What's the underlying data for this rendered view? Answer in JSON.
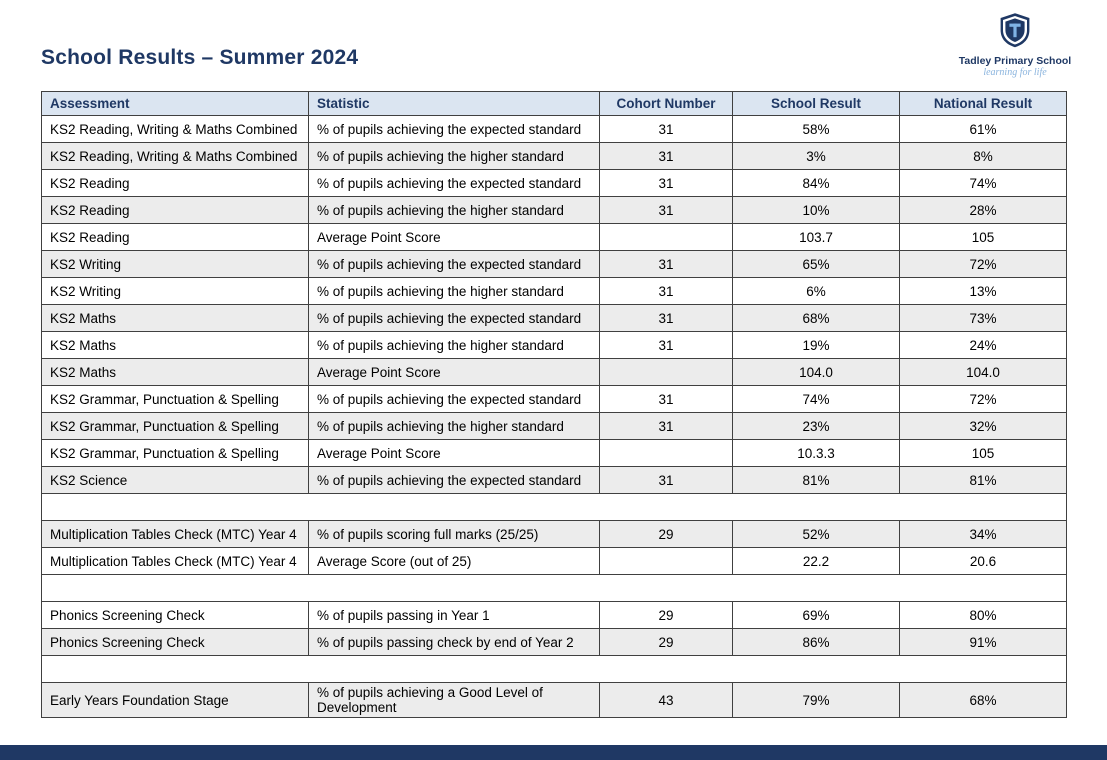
{
  "page": {
    "title": "School Results – Summer 2024"
  },
  "logo": {
    "school_name": "Tadley Primary School",
    "tagline": "learning for life",
    "crest": "shield-with-T"
  },
  "colors": {
    "title_text": "#1f3864",
    "header_bg": "#dbe5f1",
    "header_text": "#1f3864",
    "row_shaded_bg": "#ececec",
    "border": "#404040",
    "footer_bar": "#1f3864",
    "tagline_color": "#8ab4de",
    "crest_accent": "#7fb2e5"
  },
  "table": {
    "columns": [
      {
        "label": "Assessment",
        "align": "left"
      },
      {
        "label": "Statistic",
        "align": "left"
      },
      {
        "label": "Cohort Number",
        "align": "center"
      },
      {
        "label": "School Result",
        "align": "center"
      },
      {
        "label": "National Result",
        "align": "center"
      }
    ],
    "rows": [
      {
        "type": "data",
        "shaded": false,
        "cells": [
          "KS2 Reading, Writing & Maths Combined",
          "% of pupils achieving the expected standard",
          "31",
          "58%",
          "61%"
        ]
      },
      {
        "type": "data",
        "shaded": true,
        "cells": [
          "KS2 Reading, Writing & Maths Combined",
          "% of pupils achieving the higher standard",
          "31",
          "3%",
          "8%"
        ]
      },
      {
        "type": "data",
        "shaded": false,
        "cells": [
          "KS2 Reading",
          "% of pupils achieving the expected standard",
          "31",
          "84%",
          "74%"
        ]
      },
      {
        "type": "data",
        "shaded": true,
        "cells": [
          "KS2 Reading",
          "% of pupils achieving the higher standard",
          "31",
          "10%",
          "28%"
        ]
      },
      {
        "type": "data",
        "shaded": false,
        "cells": [
          "KS2 Reading",
          "Average Point Score",
          "",
          "103.7",
          "105"
        ]
      },
      {
        "type": "data",
        "shaded": true,
        "cells": [
          "KS2 Writing",
          "% of pupils achieving the expected standard",
          "31",
          "65%",
          "72%"
        ]
      },
      {
        "type": "data",
        "shaded": false,
        "cells": [
          "KS2 Writing",
          "% of pupils achieving the higher standard",
          "31",
          "6%",
          "13%"
        ]
      },
      {
        "type": "data",
        "shaded": true,
        "cells": [
          "KS2 Maths",
          "% of pupils achieving the expected standard",
          "31",
          "68%",
          "73%"
        ]
      },
      {
        "type": "data",
        "shaded": false,
        "cells": [
          "KS2 Maths",
          "% of pupils achieving the higher standard",
          "31",
          "19%",
          "24%"
        ]
      },
      {
        "type": "data",
        "shaded": true,
        "cells": [
          "KS2 Maths",
          "Average Point Score",
          "",
          "104.0",
          "104.0"
        ]
      },
      {
        "type": "data",
        "shaded": false,
        "cells": [
          "KS2 Grammar, Punctuation & Spelling",
          "% of pupils achieving the expected standard",
          "31",
          "74%",
          "72%"
        ]
      },
      {
        "type": "data",
        "shaded": true,
        "cells": [
          "KS2 Grammar, Punctuation & Spelling",
          "% of pupils achieving the higher standard",
          "31",
          "23%",
          "32%"
        ]
      },
      {
        "type": "data",
        "shaded": false,
        "cells": [
          "KS2 Grammar, Punctuation & Spelling",
          "Average Point Score",
          "",
          "10.3.3",
          "105"
        ]
      },
      {
        "type": "data",
        "shaded": true,
        "cells": [
          "KS2 Science",
          "% of pupils achieving the expected standard",
          "31",
          "81%",
          "81%"
        ]
      },
      {
        "type": "spacer",
        "shaded": false
      },
      {
        "type": "data",
        "shaded": true,
        "cells": [
          "Multiplication Tables Check (MTC) Year 4",
          "% of pupils scoring full marks (25/25)",
          "29",
          "52%",
          "34%"
        ]
      },
      {
        "type": "data",
        "shaded": false,
        "cells": [
          "Multiplication Tables Check (MTC) Year 4",
          "Average Score (out of 25)",
          "",
          "22.2",
          "20.6"
        ]
      },
      {
        "type": "spacer",
        "shaded": false
      },
      {
        "type": "data",
        "shaded": false,
        "cells": [
          "Phonics Screening Check",
          "% of pupils passing in Year 1",
          "29",
          "69%",
          "80%"
        ]
      },
      {
        "type": "data",
        "shaded": true,
        "cells": [
          "Phonics Screening Check",
          "% of pupils passing check by end of Year 2",
          "29",
          "86%",
          "91%"
        ]
      },
      {
        "type": "spacer",
        "shaded": false
      },
      {
        "type": "data",
        "shaded": true,
        "cells": [
          "Early Years Foundation Stage",
          "% of pupils achieving a Good Level of Development",
          "43",
          "79%",
          "68%"
        ]
      }
    ]
  }
}
